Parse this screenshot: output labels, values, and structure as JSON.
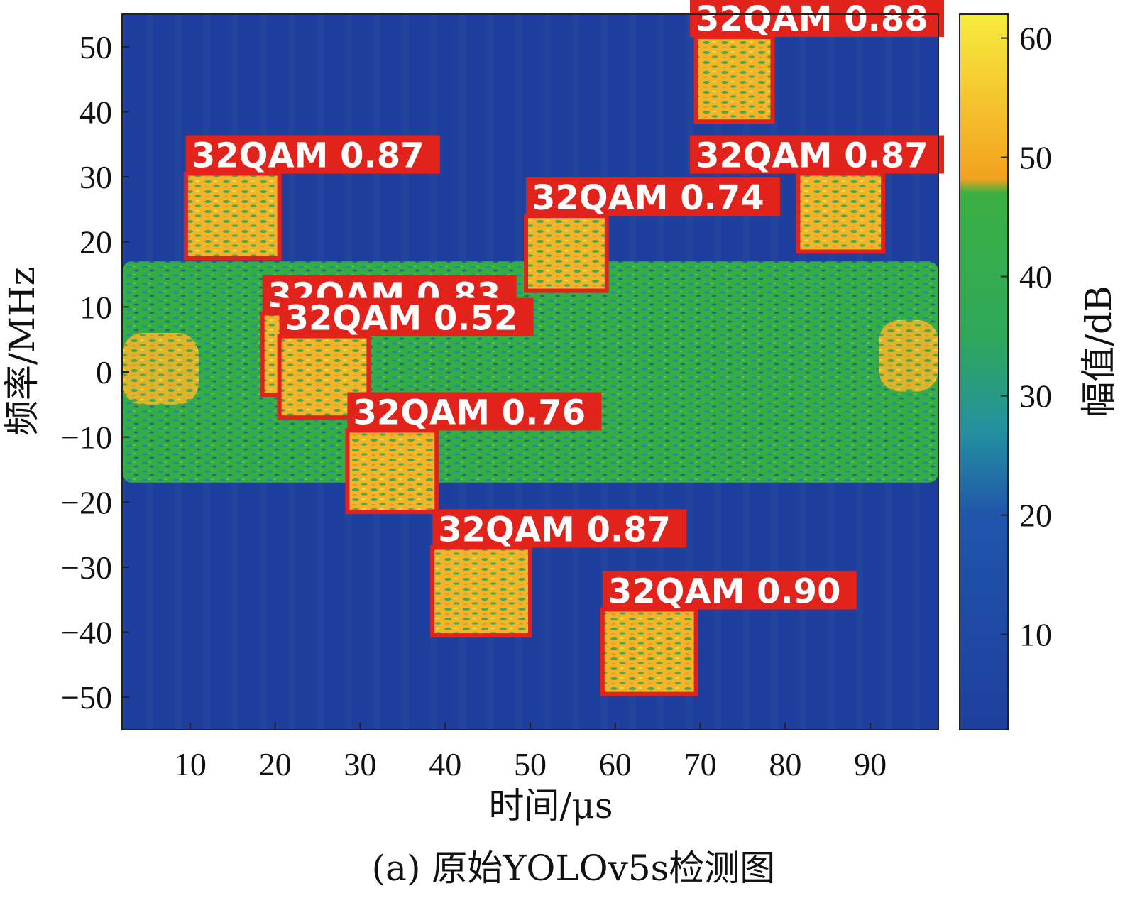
{
  "chart_data": {
    "type": "heatmap",
    "title": "",
    "xlabel": "时间/μs",
    "ylabel": "频率/MHz",
    "colorbar_label": "幅值/dB",
    "caption": "(a) 原始YOLOv5s检测图",
    "xlim": [
      2,
      98
    ],
    "ylim": [
      -55,
      55
    ],
    "x_ticks": [
      10,
      20,
      30,
      40,
      50,
      60,
      70,
      80,
      90
    ],
    "y_ticks": [
      50,
      40,
      30,
      20,
      10,
      0,
      -10,
      -20,
      -30,
      -40,
      -50
    ],
    "y_tick_labels": [
      "50",
      "40",
      "30",
      "20",
      "10",
      "0",
      "−10",
      "−20",
      "−30",
      "−40",
      "−50"
    ],
    "colorbar": {
      "range": [
        2,
        62
      ],
      "ticks": [
        60,
        50,
        40,
        30,
        20,
        10
      ],
      "colormap": [
        "#1f3f9e",
        "#1f63b0",
        "#2aa36a",
        "#33b24a",
        "#f0a020",
        "#f5e83a"
      ]
    },
    "background": {
      "noise_band_freq": [
        -17,
        17
      ],
      "noise_level_db": 40,
      "floor_level_db": 18,
      "background_signals": [
        {
          "x": [
            2,
            11
          ],
          "y": [
            -5,
            6
          ],
          "level_db": 52
        },
        {
          "x": [
            91,
            98
          ],
          "y": [
            -3,
            8
          ],
          "level_db": 52
        }
      ]
    },
    "detections": [
      {
        "class": "32QAM",
        "confidence": "0.87",
        "x": [
          9.5,
          20.5
        ],
        "y": [
          17.5,
          30.5
        ]
      },
      {
        "class": "32QAM",
        "confidence": "0.88",
        "x": [
          69.5,
          78.5
        ],
        "y": [
          38.5,
          51.5
        ]
      },
      {
        "class": "32QAM",
        "confidence": "0.87",
        "x": [
          81.5,
          91.5
        ],
        "y": [
          18.5,
          30.5
        ]
      },
      {
        "class": "32QAM",
        "confidence": "0.74",
        "x": [
          49.5,
          59
        ],
        "y": [
          12.5,
          24
        ]
      },
      {
        "class": "32QAM",
        "confidence": "0.83",
        "x": [
          18.5,
          29
        ],
        "y": [
          -3.5,
          9
        ]
      },
      {
        "class": "32QAM",
        "confidence": "0.52",
        "x": [
          20.5,
          31
        ],
        "y": [
          -7,
          5.5
        ]
      },
      {
        "class": "32QAM",
        "confidence": "0.76",
        "x": [
          28.5,
          39
        ],
        "y": [
          -21.5,
          -9
        ]
      },
      {
        "class": "32QAM",
        "confidence": "0.87",
        "x": [
          38.5,
          50
        ],
        "y": [
          -40.5,
          -27
        ]
      },
      {
        "class": "32QAM",
        "confidence": "0.90",
        "x": [
          58.5,
          69.5
        ],
        "y": [
          -49.5,
          -36.5
        ]
      }
    ]
  }
}
